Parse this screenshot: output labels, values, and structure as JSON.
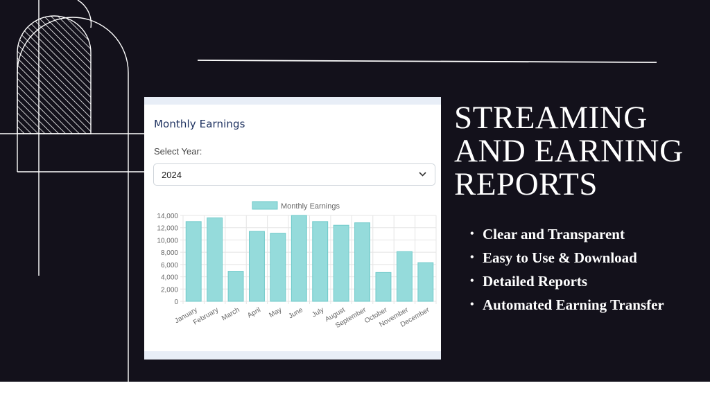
{
  "slide": {
    "heading_lines": [
      "STREAMING",
      "AND EARNING",
      "REPORTS"
    ],
    "features": [
      "Clear and Transparent",
      "Easy to Use & Download",
      "Detailed Reports",
      "Automated Earning Transfer"
    ],
    "bullet": "•",
    "colors": {
      "background": "#13111b",
      "text": "#ffffff",
      "deco_line": "#ffffff"
    }
  },
  "card": {
    "title": "Monthly Earnings",
    "year_label": "Select Year:",
    "year_value": "2024",
    "chevron": "chevron-down-icon"
  },
  "chart_data": {
    "type": "bar",
    "legend": "Monthly Earnings",
    "legend_position": "top",
    "categories": [
      "January",
      "February",
      "March",
      "April",
      "May",
      "June",
      "July",
      "August",
      "September",
      "October",
      "November",
      "December"
    ],
    "series": [
      {
        "name": "Monthly Earnings",
        "values": [
          13000,
          13600,
          4900,
          11400,
          11100,
          14000,
          13000,
          12400,
          12800,
          4700,
          8100,
          6300
        ]
      }
    ],
    "y_ticks": [
      "0",
      "2,000",
      "4,000",
      "6,000",
      "8,000",
      "10,000",
      "12,000",
      "14,000"
    ],
    "ylim": [
      0,
      14000
    ],
    "grid": true,
    "colors": {
      "bar_fill": "#95dbdb",
      "bar_stroke": "#6fcaca",
      "grid": "#e4e4e4",
      "tick": "#666666"
    }
  }
}
